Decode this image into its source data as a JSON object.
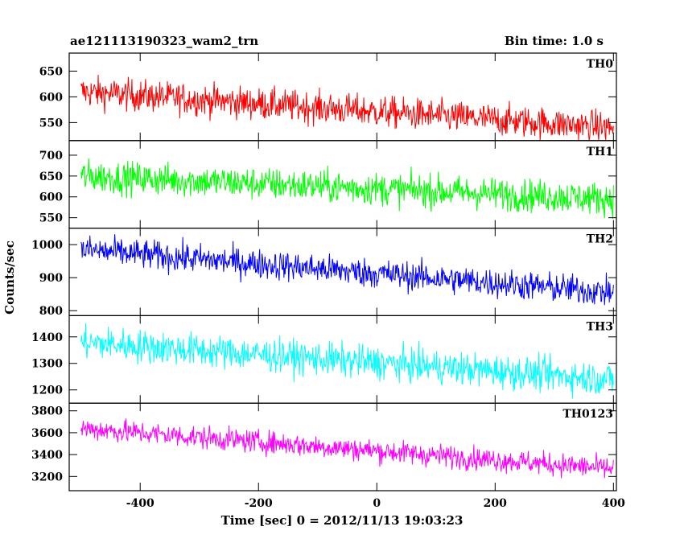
{
  "header": {
    "title_left": "ae121113190323_wam2_trn",
    "title_right": "Bin time: 1.0 s"
  },
  "chart_data": {
    "type": "line",
    "xlabel": "Time [sec] 0 = 2012/11/13 19:03:23",
    "ylabel": "Counts/sec",
    "xlim": [
      -520,
      405
    ],
    "xticks": [
      -400,
      -200,
      0,
      200,
      400
    ],
    "x_range": [
      -500,
      400
    ],
    "grid": false,
    "panels": [
      {
        "name": "TH0",
        "color": "#ff0000",
        "ylim": [
          515,
          685
        ],
        "yticks": [
          550,
          600,
          650
        ],
        "trend": [
          610,
          540
        ],
        "noise": 22
      },
      {
        "name": "TH1",
        "color": "#00ff00",
        "ylim": [
          525,
          735
        ],
        "yticks": [
          550,
          600,
          650,
          700
        ],
        "trend": [
          650,
          595
        ],
        "noise": 28
      },
      {
        "name": "TH2",
        "color": "#0000ff",
        "ylim": [
          785,
          1050
        ],
        "yticks": [
          800,
          900,
          1000
        ],
        "trend": [
          985,
          855
        ],
        "noise": 32
      },
      {
        "name": "TH3",
        "color": "#00ffff",
        "ylim": [
          1150,
          1480
        ],
        "yticks": [
          1200,
          1300,
          1400
        ],
        "trend": [
          1380,
          1240
        ],
        "noise": 45
      },
      {
        "name": "TH0123",
        "color": "#ff00ff",
        "ylim": [
          3070,
          3870
        ],
        "yticks": [
          3200,
          3400,
          3600,
          3800
        ],
        "trend": [
          3640,
          3270
        ],
        "noise": 75
      }
    ]
  }
}
